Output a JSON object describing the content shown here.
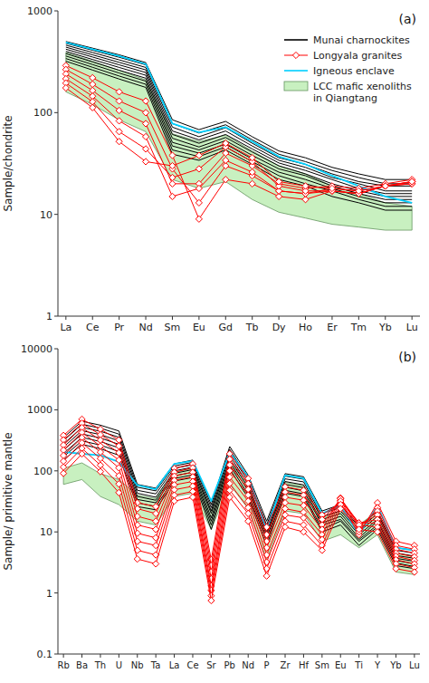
{
  "chart_data": [
    {
      "type": "line",
      "categories": [
        "La",
        "Ce",
        "Pr",
        "Nd",
        "Sm",
        "Eu",
        "Gd",
        "Tb",
        "Dy",
        "Ho",
        "Er",
        "Tm",
        "Yb",
        "Lu"
      ],
      "y_label": "Sample/chondrite",
      "annotations": [
        "(a)"
      ],
      "log": "y",
      "ylim": [
        1,
        1000
      ],
      "yticks": [
        1,
        10,
        100,
        1000
      ],
      "grid": false,
      "legend": "upper right",
      "series": [
        {
          "name": "Munai charnockites",
          "color": "#000000",
          "values": [
            [
              500,
              430,
              370,
              310,
              85,
              68,
              82,
              58,
              42,
              36,
              29,
              25,
              22,
              22
            ],
            [
              480,
              410,
              350,
              295,
              78,
              63,
              76,
              54,
              39,
              33,
              27,
              23,
              20,
              20
            ],
            [
              460,
              390,
              330,
              278,
              72,
              58,
              71,
              50,
              36,
              31,
              25,
              21,
              19,
              19
            ],
            [
              440,
              370,
              312,
              263,
              66,
              54,
              66,
              47,
              34,
              29,
              23,
              20,
              17,
              17
            ],
            [
              420,
              352,
              295,
              248,
              61,
              50,
              61,
              44,
              32,
              27,
              22,
              18,
              16,
              16
            ],
            [
              400,
              333,
              278,
              233,
              56,
              46,
              57,
              41,
              30,
              25,
              20,
              17,
              15,
              15
            ],
            [
              380,
              315,
              261,
              218,
              51,
              43,
              53,
              38,
              28,
              24,
              19,
              16,
              14,
              14
            ],
            [
              360,
              297,
              245,
              204,
              47,
              40,
              49,
              35,
              26,
              22,
              18,
              15,
              13,
              13
            ],
            [
              340,
              279,
              229,
              190,
              43,
              37,
              46,
              33,
              24,
              20,
              17,
              14,
              12,
              12
            ],
            [
              320,
              262,
              214,
              177,
              39,
              34,
              43,
              31,
              22,
              19,
              15,
              13,
              11,
              11
            ]
          ]
        },
        {
          "name": "Longyala granites",
          "color": "#ff0000",
          "marker": "diamond",
          "values": [
            [
              290,
              220,
              160,
              130,
              38,
              9,
              22,
              20,
              15,
              14,
              17,
              16,
              19,
              20
            ],
            [
              265,
              190,
              130,
              100,
              28,
              13,
              30,
              24,
              17,
              16,
              18,
              17,
              19,
              21
            ],
            [
              240,
              165,
              105,
              78,
              20,
              20,
              40,
              30,
              20,
              18,
              19,
              18,
              20,
              22
            ],
            [
              215,
              145,
              83,
              58,
              15,
              18,
              34,
              26,
              17,
              16,
              17,
              16,
              19,
              20
            ],
            [
              195,
              128,
              65,
              44,
              23,
              28,
              46,
              33,
              19,
              17,
              17,
              16,
              19,
              21
            ],
            [
              175,
              112,
              52,
              33,
              30,
              38,
              50,
              36,
              21,
              19,
              18,
              17,
              19,
              21
            ]
          ]
        },
        {
          "name": "Igneous enclave",
          "color": "#00cfff",
          "values": [
            490,
            420,
            360,
            300,
            78,
            64,
            72,
            52,
            37,
            31,
            24,
            19,
            15,
            13
          ]
        },
        {
          "name": "LCC mafic xenoliths\nin Qiangtang",
          "type": "area",
          "color": "#c8f0c0",
          "values": [
            390,
            320,
            260,
            210,
            62,
            52,
            60,
            42,
            30,
            25,
            19,
            16,
            13,
            12
          ],
          "lower": [
            160,
            120,
            85,
            65,
            22,
            18,
            21,
            14,
            10.5,
            9.2,
            8,
            7.5,
            7,
            7
          ]
        }
      ]
    },
    {
      "type": "line",
      "categories": [
        "Rb",
        "Ba",
        "Th",
        "U",
        "Nb",
        "Ta",
        "La",
        "Ce",
        "Sr",
        "Pb",
        "Nd",
        "P",
        "Zr",
        "Hf",
        "Sm",
        "Eu",
        "Ti",
        "Y",
        "Yb",
        "Lu"
      ],
      "y_label": "Sample/ primitive mantle",
      "annotations": [
        "(b)"
      ],
      "log": "y",
      "ylim": [
        0.1,
        10000
      ],
      "yticks": [
        0.1,
        1,
        10,
        100,
        1000,
        10000
      ],
      "grid": false,
      "series": [
        {
          "color": "#000000",
          "values": [
            [
              350,
              650,
              560,
              450,
              60,
              52,
              130,
              150,
              28,
              250,
              85,
              15,
              90,
              80,
              22,
              28,
              12,
              22,
              5.5,
              5.0
            ],
            [
              310,
              580,
              500,
              400,
              54,
              47,
              120,
              138,
              25,
              225,
              76,
              13,
              82,
              73,
              20,
              25,
              11,
              20,
              5.0,
              4.5
            ],
            [
              275,
              515,
              445,
              355,
              48,
              42,
              110,
              126,
              22,
              200,
              67,
              12,
              74,
              66,
              18,
              22,
              10,
              18,
              4.5,
              4.0
            ],
            [
              245,
              455,
              392,
              310,
              43,
              37,
              100,
              115,
              20,
              178,
              60,
              10,
              67,
              59,
              16,
              20,
              9,
              16,
              4.1,
              3.7
            ],
            [
              218,
              402,
              345,
              272,
              38,
              33,
              91,
              105,
              17,
              158,
              53,
              9,
              60,
              53,
              14,
              18,
              8,
              15,
              3.7,
              3.3
            ],
            [
              192,
              353,
              302,
              238,
              34,
              30,
              83,
              95,
              15,
              140,
              47,
              8,
              54,
              47,
              13,
              16,
              7.5,
              13,
              3.4,
              3.0
            ],
            [
              170,
              310,
              264,
              207,
              30,
              26,
              75,
              86,
              13,
              123,
              41,
              7,
              48,
              42,
              11,
              15,
              7,
              12,
              3.1,
              2.7
            ],
            [
              150,
              272,
              230,
              180,
              26,
              23,
              68,
              78,
              11,
              108,
              36,
              6,
              43,
              38,
              10,
              13,
              6,
              11,
              2.8,
              2.5
            ]
          ]
        },
        {
          "color": "#ff0000",
          "marker": "diamond",
          "values": [
            [
              380,
              700,
              480,
              320,
              30,
              26,
              110,
              130,
              3.5,
              190,
              75,
              12,
              55,
              48,
              19,
              30,
              9,
              30,
              7,
              6
            ],
            [
              320,
              600,
              390,
              255,
              24,
              20,
              95,
              112,
              2.8,
              155,
              62,
              9,
              45,
              40,
              16,
              33,
              10,
              25,
              6,
              5.2
            ],
            [
              265,
              510,
              318,
              198,
              18,
              15,
              82,
              95,
              2.2,
              125,
              50,
              7,
              37,
              33,
              13,
              35,
              12,
              22,
              5.2,
              4.5
            ],
            [
              218,
              425,
              255,
              150,
              13,
              11,
              70,
              80,
              1.7,
              100,
              40,
              5.5,
              30,
              27,
              11,
              36,
              13,
              19,
              4.5,
              3.9
            ],
            [
              178,
              350,
              203,
              112,
              9.5,
              8,
              59,
              67,
              1.3,
              79,
              32,
              4.2,
              24,
              21,
              9,
              35,
              14,
              16,
              4.0,
              3.4
            ],
            [
              144,
              288,
              160,
              83,
              7,
              6,
              49,
              56,
              1.1,
              62,
              25,
              3.2,
              19,
              17,
              7.5,
              32,
              14,
              14,
              3.5,
              3.0
            ],
            [
              115,
              234,
              124,
              61,
              5,
              4.2,
              40,
              46,
              0.9,
              48,
              20,
              2.5,
              15,
              13,
              6,
              28,
              13,
              12,
              3.0,
              2.6
            ],
            [
              91,
              190,
              97,
              44,
              3.6,
              3,
              32,
              37,
              0.75,
              37,
              15,
              1.9,
              12,
              10,
              5,
              24,
              11,
              10,
              2.5,
              2.2
            ]
          ]
        },
        {
          "color": "#00cfff",
          "values": [
            205,
            190,
            180,
            140,
            58,
            50,
            130,
            145,
            32,
            200,
            80,
            11,
            85,
            75,
            20,
            27,
            9,
            27,
            5.5,
            5.0
          ]
        },
        {
          "type": "area",
          "color": "#c8f0c0",
          "values": [
            110,
            135,
            90,
            72,
            40,
            35,
            95,
            110,
            22,
            140,
            58,
            9,
            65,
            57,
            17,
            22,
            13,
            22,
            4.5,
            4.0
          ],
          "lower": [
            60,
            72,
            38,
            28,
            15,
            13,
            38,
            43,
            11,
            60,
            24,
            3.5,
            22,
            20,
            7,
            9,
            5.5,
            9,
            2.2,
            2.0
          ]
        }
      ]
    }
  ]
}
